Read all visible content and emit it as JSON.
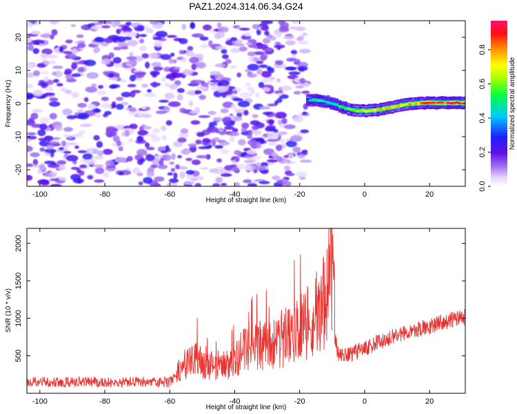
{
  "title": "PAZ1.2024.314.06.34.G24",
  "chart_data": [
    {
      "type": "heatmap",
      "xlabel": "Height of straight line (km)",
      "ylabel": "Frequency (Hz)",
      "xlim": [
        -104,
        31
      ],
      "ylim": [
        -25,
        25
      ],
      "xticks": [
        -100,
        -80,
        -60,
        -40,
        -20,
        0,
        20
      ],
      "yticks": [
        -20,
        -10,
        0,
        10,
        20
      ],
      "noise_region": {
        "x_range": [
          -104,
          -18
        ],
        "y_range": [
          -25,
          25
        ],
        "peak_amplitude": 0.25
      },
      "signal_track": {
        "x": [
          -18,
          -15,
          -12,
          -9,
          -6,
          -3,
          0,
          3,
          6,
          9,
          12,
          15,
          18,
          21,
          24,
          27,
          30
        ],
        "frequency": [
          1.0,
          1.0,
          0.5,
          -0.5,
          -1.5,
          -2.2,
          -2.2,
          -2.0,
          -1.5,
          -1.0,
          -0.3,
          0.0,
          0.2,
          0.2,
          0.2,
          0.2,
          0.2
        ],
        "amplitude": [
          0.4,
          0.6,
          0.5,
          0.55,
          0.6,
          0.7,
          0.75,
          0.8,
          0.8,
          0.8,
          0.8,
          0.85,
          0.9,
          0.95,
          0.95,
          0.95,
          0.95
        ]
      },
      "colorbar": {
        "label": "Normalized spectral amplitude",
        "range": [
          0,
          0.97
        ],
        "ticks": [
          "0.0",
          "0.2",
          "0.4",
          "0.6",
          "0.8"
        ],
        "ticks_values": [
          0.0,
          0.2,
          0.4,
          0.6,
          0.8
        ]
      }
    },
    {
      "type": "line",
      "xlabel": "Height of straight line (km)",
      "ylabel": "SNR (10 * v/v)",
      "xlim": [
        -104,
        31
      ],
      "ylim": [
        0,
        2200
      ],
      "xticks": [
        -100,
        -80,
        -60,
        -40,
        -20,
        0,
        20
      ],
      "yticks": [
        500,
        1000,
        1500,
        2000
      ],
      "color": "#e8322f",
      "series": [
        {
          "x": [
            -104,
            -95,
            -85,
            -75,
            -65,
            -60,
            -58,
            -55,
            -52,
            -50,
            -47,
            -45,
            -42,
            -40,
            -38,
            -35,
            -33,
            -30,
            -27,
            -25,
            -22,
            -20,
            -18,
            -16,
            -14,
            -12,
            -11,
            -10,
            -9.5,
            -9,
            -8,
            -5,
            -2,
            0,
            2,
            5,
            10,
            15,
            20,
            25,
            31
          ],
          "y": [
            150,
            150,
            150,
            150,
            150,
            150,
            250,
            400,
            450,
            400,
            380,
            350,
            380,
            420,
            550,
            600,
            650,
            600,
            650,
            700,
            750,
            900,
            950,
            1000,
            1100,
            1300,
            1500,
            1800,
            1500,
            700,
            500,
            520,
            560,
            600,
            640,
            700,
            780,
            840,
            900,
            960,
            1020
          ]
        }
      ]
    }
  ]
}
